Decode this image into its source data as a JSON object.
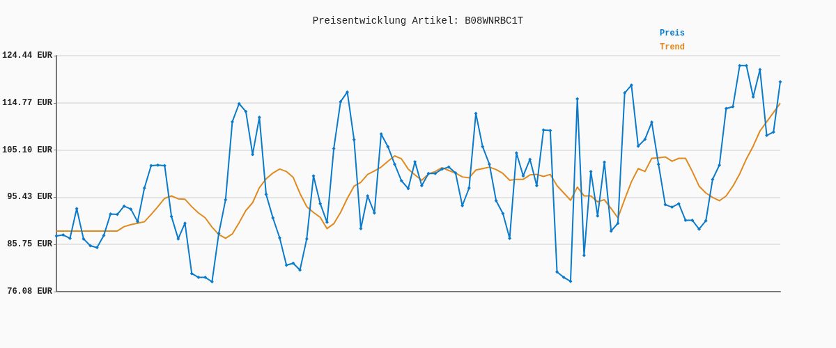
{
  "chart_data": {
    "type": "line",
    "title": "Preisentwicklung Artikel: B08WNRBC1T",
    "categories": [
      null,
      null,
      null,
      null,
      null,
      null,
      null,
      null,
      null,
      null,
      null,
      null,
      null,
      null,
      null,
      null,
      null,
      null,
      null,
      null,
      null,
      null,
      null,
      null,
      null,
      null,
      null,
      null,
      null,
      null,
      null,
      null,
      null,
      null,
      null,
      null,
      null,
      null,
      null,
      null,
      null,
      null,
      null,
      null,
      null,
      null,
      null,
      null,
      null,
      null,
      null,
      null,
      null,
      null,
      null,
      null,
      null,
      null,
      null,
      null,
      null,
      null,
      null,
      null,
      null,
      null,
      null,
      null,
      null,
      null,
      null,
      null,
      null,
      null,
      null,
      null,
      null,
      null,
      null,
      null,
      null,
      null,
      null,
      null,
      null,
      null,
      null,
      null,
      null,
      null,
      null,
      null,
      null,
      null,
      null,
      null,
      null,
      null,
      null,
      null,
      null,
      null,
      null,
      null,
      null,
      null,
      null,
      null
    ],
    "series": [
      {
        "name": "Preis",
        "color": "#0a7acb",
        "marker": "diamond",
        "values": [
          87.5,
          87.7,
          87.0,
          93.1,
          86.9,
          85.5,
          85.1,
          87.6,
          92.0,
          91.9,
          93.6,
          93.0,
          90.4,
          97.3,
          101.9,
          102.0,
          101.9,
          91.5,
          86.9,
          90.1,
          79.8,
          79.0,
          79.0,
          78.1,
          88.0,
          94.9,
          110.9,
          114.6,
          113.0,
          104.2,
          111.8,
          96.0,
          91.2,
          87.1,
          81.5,
          81.9,
          80.5,
          86.9,
          99.8,
          94.1,
          90.3,
          105.4,
          115.0,
          117.0,
          107.2,
          89.0,
          95.7,
          92.2,
          108.4,
          105.8,
          102.2,
          98.8,
          97.2,
          102.7,
          97.8,
          100.3,
          100.3,
          101.2,
          101.6,
          100.4,
          93.7,
          97.3,
          112.6,
          105.8,
          102.2,
          94.7,
          92.1,
          87.0,
          104.5,
          99.8,
          103.2,
          97.8,
          109.2,
          109.1,
          80.1,
          79.0,
          78.2,
          115.6,
          83.5,
          100.7,
          91.6,
          102.6,
          88.5,
          90.1,
          116.8,
          118.4,
          105.9,
          107.3,
          110.8,
          102.2,
          93.9,
          93.4,
          94.1,
          90.7,
          90.7,
          88.9,
          90.6,
          99.1,
          102.0,
          113.6,
          114.0,
          122.4,
          122.4,
          116.0,
          121.6,
          108.1,
          108.8,
          119.1
        ]
      },
      {
        "name": "Trend",
        "color": "#e08a1e",
        "marker": "none",
        "values": [
          88.5,
          88.5,
          88.5,
          88.5,
          88.5,
          88.5,
          88.5,
          88.5,
          88.5,
          88.5,
          89.4,
          89.8,
          90.1,
          90.4,
          91.9,
          93.5,
          95.2,
          95.7,
          95.1,
          95.0,
          93.5,
          92.2,
          91.2,
          89.3,
          87.8,
          87.0,
          87.9,
          90.2,
          92.7,
          94.3,
          97.4,
          99.2,
          100.4,
          101.2,
          100.7,
          99.5,
          96.2,
          93.5,
          92.3,
          91.3,
          89.0,
          90.0,
          92.3,
          95.2,
          97.7,
          98.5,
          100.1,
          100.8,
          101.6,
          102.8,
          103.9,
          103.3,
          101.2,
          100.0,
          98.9,
          100.2,
          100.7,
          101.5,
          100.9,
          100.4,
          99.6,
          99.4,
          101.0,
          101.3,
          101.6,
          101.1,
          100.3,
          98.9,
          99.1,
          99.1,
          100.0,
          100.1,
          99.7,
          100.1,
          97.8,
          96.3,
          94.8,
          97.5,
          95.7,
          95.7,
          94.5,
          94.9,
          93.1,
          91.2,
          95.0,
          98.6,
          101.3,
          100.7,
          103.4,
          103.5,
          103.7,
          102.8,
          103.4,
          103.4,
          100.7,
          97.7,
          96.3,
          95.4,
          94.7,
          95.7,
          97.7,
          100.2,
          103.3,
          105.9,
          109.0,
          110.9,
          112.8,
          114.7
        ]
      }
    ],
    "ylim": [
      76.08,
      124.44
    ],
    "yticks": [
      {
        "value": 76.08,
        "label": "76.08 EUR"
      },
      {
        "value": 85.75,
        "label": "85.75 EUR"
      },
      {
        "value": 95.43,
        "label": "95.43 EUR"
      },
      {
        "value": 105.1,
        "label": "105.10 EUR"
      },
      {
        "value": 114.77,
        "label": "114.77 EUR"
      },
      {
        "value": 124.44,
        "label": "124.44 EUR"
      }
    ],
    "grid": "y",
    "legend": "top right",
    "tick_labels": "y",
    "line_style": "solid"
  }
}
